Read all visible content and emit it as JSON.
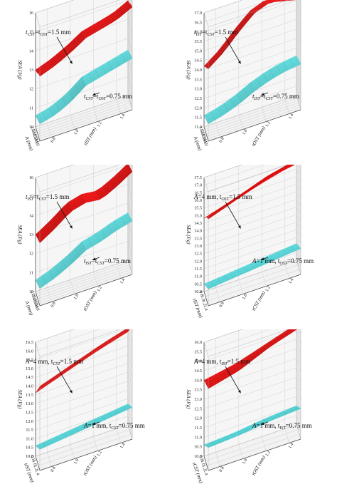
{
  "colors": {
    "upper": "#ee1111",
    "upper_edge": "#9a0000",
    "lower": "#6fe8ea",
    "lower_edge": "#2ab5b8",
    "wall": "#f6f6f6",
    "grid": "#c8c8c8"
  },
  "chart_data": [
    {
      "type": "surface",
      "zlabel": "SEA (J/g)",
      "xlabel": "A (mm)",
      "ylabel": "tIST (mm)",
      "zticks": [
        "10",
        "11",
        "12",
        "13",
        "14",
        "15",
        "16"
      ],
      "xticks": [
        "1.0",
        "1.5",
        "2.0",
        "2.5",
        "3.0",
        "3.5",
        "4.0"
      ],
      "yticks": [
        "0.8",
        "1.0",
        "1.2",
        "1.4"
      ],
      "zlim": [
        10,
        16
      ],
      "upper_label": {
        "pre": "t",
        "sub1": "CST",
        "mid": "=t",
        "sub2": "OST",
        "post": "=1.5 mm"
      },
      "lower_label": {
        "pre": "t",
        "sub1": "CST",
        "mid": "=t",
        "sub2": "OST",
        "post": "=0.75 mm"
      },
      "upper_z": [
        [
          13.0,
          13.3,
          13.7,
          14.2,
          14.4,
          14.6,
          15.0
        ],
        [
          13.1,
          13.4,
          13.8,
          14.3,
          14.5,
          14.7,
          15.1
        ],
        [
          13.3,
          13.5,
          14.0,
          14.4,
          14.6,
          14.9,
          15.3
        ],
        [
          13.4,
          13.7,
          14.1,
          14.6,
          14.8,
          15.0,
          15.4
        ]
      ],
      "lower_z": [
        [
          10.6,
          10.8,
          11.2,
          11.8,
          12.0,
          12.2,
          12.4
        ],
        [
          10.7,
          10.9,
          11.3,
          11.9,
          12.1,
          12.3,
          12.5
        ],
        [
          10.8,
          11.0,
          11.4,
          12.0,
          12.2,
          12.4,
          12.6
        ],
        [
          10.9,
          11.1,
          11.5,
          12.1,
          12.3,
          12.5,
          12.7
        ]
      ]
    },
    {
      "type": "surface",
      "zlabel": "SEA (J/g)",
      "xlabel": "A (mm)",
      "ylabel": "tOST (mm)",
      "zticks": [
        "11.0",
        "11.5",
        "12.0",
        "12.5",
        "13.0",
        "13.5",
        "14.0",
        "14.5",
        "15.0",
        "15.5",
        "16.0",
        "16.5",
        "17.0"
      ],
      "xticks": [
        "1.0",
        "1.5",
        "2.0",
        "2.5",
        "3.0",
        "3.5",
        "4.0"
      ],
      "yticks": [
        "0.8",
        "1.0",
        "1.2",
        "1.4"
      ],
      "zlim": [
        11,
        17
      ],
      "upper_label": {
        "pre": "t",
        "sub1": "IST",
        "mid": "=t",
        "sub2": "CST",
        "post": "=1.5 mm"
      },
      "lower_label": {
        "pre": "t",
        "sub1": "IST",
        "mid": "=t",
        "sub2": "CST",
        "post": "=0.75 mm"
      },
      "upper_z": [
        [
          14.2,
          14.8,
          15.6,
          16.3,
          16.6,
          16.4,
          16.2
        ],
        [
          14.4,
          15.0,
          15.8,
          16.5,
          16.8,
          16.6,
          16.4
        ],
        [
          14.6,
          15.2,
          16.0,
          16.7,
          17.0,
          16.8,
          16.6
        ],
        [
          14.8,
          15.4,
          16.2,
          16.9,
          17.2,
          17.0,
          16.8
        ]
      ],
      "lower_z": [
        [
          11.6,
          11.8,
          12.1,
          12.5,
          12.8,
          13.0,
          13.1
        ],
        [
          11.7,
          11.9,
          12.2,
          12.6,
          12.9,
          13.1,
          13.2
        ],
        [
          11.8,
          12.0,
          12.3,
          12.7,
          13.0,
          13.2,
          13.3
        ],
        [
          11.9,
          12.1,
          12.4,
          12.8,
          13.1,
          13.3,
          13.4
        ]
      ]
    },
    {
      "type": "surface",
      "zlabel": "SEA (J/g)",
      "xlabel": "A (mm)",
      "ylabel": "tOST (mm)",
      "zticks": [
        "10",
        "11",
        "12",
        "13",
        "14",
        "15",
        "16"
      ],
      "xticks": [
        "1.0",
        "1.5",
        "2.0",
        "2.5",
        "3.0",
        "3.5",
        "4.0"
      ],
      "yticks": [
        "0.8",
        "1.0",
        "1.2",
        "1.4"
      ],
      "zlim": [
        10,
        16
      ],
      "upper_label": {
        "pre": "t",
        "sub1": "IST",
        "mid": "=t",
        "sub2": "CST",
        "post": "=1.5 mm"
      },
      "lower_label": {
        "pre": "t",
        "sub1": "IST",
        "mid": "=t",
        "sub2": "CST",
        "post": "=0.75 mm"
      },
      "upper_z": [
        [
          13.0,
          13.5,
          14.1,
          14.3,
          14.2,
          14.6,
          15.1
        ],
        [
          13.1,
          13.6,
          14.2,
          14.4,
          14.3,
          14.7,
          15.2
        ],
        [
          13.2,
          13.7,
          14.3,
          14.5,
          14.4,
          14.8,
          15.3
        ],
        [
          13.3,
          13.8,
          14.4,
          14.6,
          14.5,
          14.9,
          15.4
        ]
      ],
      "lower_z": [
        [
          10.6,
          10.9,
          11.3,
          11.8,
          12.0,
          12.3,
          12.5
        ],
        [
          10.7,
          11.0,
          11.4,
          11.9,
          12.1,
          12.4,
          12.6
        ],
        [
          10.8,
          11.1,
          11.5,
          12.0,
          12.2,
          12.5,
          12.7
        ],
        [
          10.9,
          11.2,
          11.6,
          12.1,
          12.3,
          12.6,
          12.8
        ]
      ]
    },
    {
      "type": "surface",
      "zlabel": "SEA (J/g)",
      "xlabel": "tIST (mm)",
      "ylabel": "tCST (mm)",
      "zticks": [
        "10.0",
        "10.5",
        "11.0",
        "11.5",
        "12.0",
        "12.5",
        "13.0",
        "13.5",
        "14.0",
        "14.5",
        "15.0",
        "15.5",
        "16.0",
        "16.5",
        "17.0",
        "17.5"
      ],
      "xticks": [
        "0.8",
        "1.0",
        "1.2",
        "1.4"
      ],
      "yticks": [
        "0.8",
        "1.0",
        "1.2",
        "1.4"
      ],
      "zlim": [
        10,
        17.5
      ],
      "upper_label": {
        "pre": "A",
        "sub1": "",
        "mid": "=4 mm, t",
        "sub2": "OST",
        "post": "=1.5 mm"
      },
      "lower_label": {
        "pre": "A",
        "sub1": "",
        "mid": "=1 mm, t",
        "sub2": "OST",
        "post": "=0.75 mm"
      },
      "upper_z": [
        [
          14.8,
          15.3,
          15.9,
          16.4
        ],
        [
          15.2,
          15.8,
          16.5,
          17.0
        ],
        [
          15.5,
          16.2,
          16.9,
          17.3
        ],
        [
          15.7,
          16.4,
          17.1,
          17.4
        ]
      ],
      "lower_z": [
        [
          10.5,
          10.7,
          10.9,
          11.1
        ],
        [
          10.7,
          10.9,
          11.1,
          11.3
        ],
        [
          10.9,
          11.1,
          11.3,
          11.5
        ],
        [
          11.1,
          11.3,
          11.5,
          11.7
        ]
      ]
    },
    {
      "type": "surface",
      "zlabel": "SEA (J/g)",
      "xlabel": "tIST (mm)",
      "ylabel": "tOST (mm)",
      "zticks": [
        "10.0",
        "10.5",
        "11.0",
        "11.5",
        "12.0",
        "12.5",
        "13.0",
        "13.5",
        "14.0",
        "14.5",
        "15.0",
        "15.5",
        "16.0",
        "16.5"
      ],
      "xticks": [
        "0.8",
        "1.0",
        "1.2",
        "1.4"
      ],
      "yticks": [
        "0.8",
        "1.0",
        "1.2",
        "1.4"
      ],
      "zlim": [
        10,
        16.5
      ],
      "upper_label": {
        "pre": "A",
        "sub1": "",
        "mid": "=4 mm, t",
        "sub2": "CST",
        "post": "=1.5 mm"
      },
      "lower_label": {
        "pre": "A",
        "sub1": "",
        "mid": "=1 mm, t",
        "sub2": "CST",
        "post": "=0.75 mm"
      },
      "upper_z": [
        [
          13.6,
          14.2,
          14.8,
          15.3
        ],
        [
          14.0,
          14.6,
          15.2,
          15.7
        ],
        [
          14.4,
          15.0,
          15.6,
          16.1
        ],
        [
          14.8,
          15.4,
          16.0,
          16.5
        ]
      ],
      "lower_z": [
        [
          10.6,
          10.8,
          11.0,
          11.2
        ],
        [
          10.8,
          11.0,
          11.2,
          11.4
        ],
        [
          11.0,
          11.2,
          11.4,
          11.6
        ],
        [
          11.2,
          11.4,
          11.6,
          11.8
        ]
      ]
    },
    {
      "type": "surface",
      "zlabel": "SEA (J/g)",
      "xlabel": "tCST (mm)",
      "ylabel": "tOST (mm)",
      "zticks": [
        "10.0",
        "10.5",
        "11.0",
        "11.5",
        "12.0",
        "12.5",
        "13.0",
        "13.5",
        "14.0",
        "14.5",
        "15.0",
        "15.5",
        "16.0"
      ],
      "xticks": [
        "0.8",
        "1.0",
        "1.2",
        "1.4"
      ],
      "yticks": [
        "0.8",
        "1.0",
        "1.2",
        "1.4"
      ],
      "zlim": [
        10,
        16
      ],
      "upper_label": {
        "pre": "A",
        "sub1": "",
        "mid": "=4 mm, t",
        "sub2": "IST",
        "post": "=1.5 mm"
      },
      "lower_label": {
        "pre": "A",
        "sub1": "",
        "mid": "=1 mm, t",
        "sub2": "IST",
        "post": "=0.75 mm"
      },
      "upper_z": [
        [
          14.0,
          14.3,
          14.8,
          15.3
        ],
        [
          14.1,
          14.5,
          15.1,
          15.6
        ],
        [
          14.2,
          14.6,
          15.3,
          15.8
        ],
        [
          14.3,
          14.7,
          15.4,
          15.9
        ]
      ],
      "lower_z": [
        [
          10.6,
          10.7,
          10.9,
          11.0
        ],
        [
          10.8,
          10.9,
          11.1,
          11.2
        ],
        [
          11.0,
          11.1,
          11.3,
          11.4
        ],
        [
          11.2,
          11.3,
          11.5,
          11.6
        ]
      ]
    }
  ]
}
